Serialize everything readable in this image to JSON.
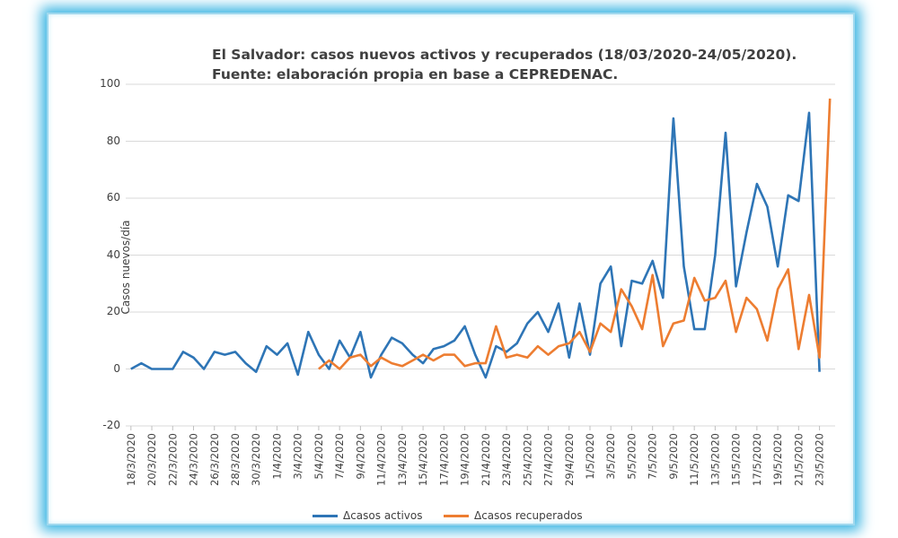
{
  "chart_data": {
    "type": "line",
    "title": "El Salvador: casos nuevos activos y recuperados (18/03/2020-24/05/2020).",
    "subtitle": "Fuente: elaboración propia en base a CEPREDENAC.",
    "ylabel": "Casos nuevos/día",
    "xlabel": "",
    "ylim": [
      -20,
      100
    ],
    "yticks": [
      -20,
      0,
      20,
      40,
      60,
      80,
      100
    ],
    "grid": true,
    "legend": "bottom",
    "x_tick_labels": [
      "18/3/2020",
      "20/3/2020",
      "22/3/2020",
      "24/3/2020",
      "26/3/2020",
      "28/3/2020",
      "30/3/2020",
      "1/4/2020",
      "3/4/2020",
      "5/4/2020",
      "7/4/2020",
      "9/4/2020",
      "11/4/2020",
      "13/4/2020",
      "15/4/2020",
      "17/4/2020",
      "19/4/2020",
      "21/4/2020",
      "23/4/2020",
      "25/4/2020",
      "27/4/2020",
      "29/4/2020",
      "1/5/2020",
      "3/5/2020",
      "5/5/2020",
      "7/5/2020",
      "9/5/2020",
      "11/5/2020",
      "13/5/2020",
      "15/5/2020",
      "17/5/2020",
      "19/5/2020",
      "21/5/2020",
      "23/5/2020"
    ],
    "x_start": "18/3/2020",
    "x_end": "24/5/2020",
    "series": [
      {
        "name": "Δcasos activos",
        "color": "#2e75b6",
        "start": "18/3/2020",
        "values": [
          0,
          2,
          0,
          0,
          0,
          6,
          4,
          0,
          6,
          5,
          6,
          2,
          -1,
          8,
          5,
          9,
          -2,
          13,
          5,
          0,
          10,
          4,
          13,
          -3,
          5,
          11,
          9,
          5,
          2,
          7,
          8,
          10,
          15,
          5,
          -3,
          8,
          6,
          9,
          16,
          20,
          13,
          23,
          4,
          23,
          5,
          30,
          36,
          8,
          31,
          30,
          38,
          25,
          88,
          36,
          14,
          14,
          40,
          83,
          29,
          48,
          65,
          57,
          36,
          61,
          59,
          90,
          -1
        ]
      },
      {
        "name": "Δcasos recuperados",
        "color": "#ed7d31",
        "start": "5/4/2020",
        "values": [
          0,
          3,
          0,
          4,
          5,
          1,
          4,
          2,
          1,
          3,
          5,
          3,
          5,
          5,
          1,
          2,
          2,
          15,
          4,
          5,
          4,
          8,
          5,
          8,
          9,
          13,
          6,
          16,
          13,
          28,
          22,
          14,
          33,
          8,
          16,
          17,
          32,
          24,
          25,
          31,
          13,
          25,
          21,
          10,
          28,
          35,
          7,
          26,
          4,
          95
        ]
      }
    ]
  }
}
